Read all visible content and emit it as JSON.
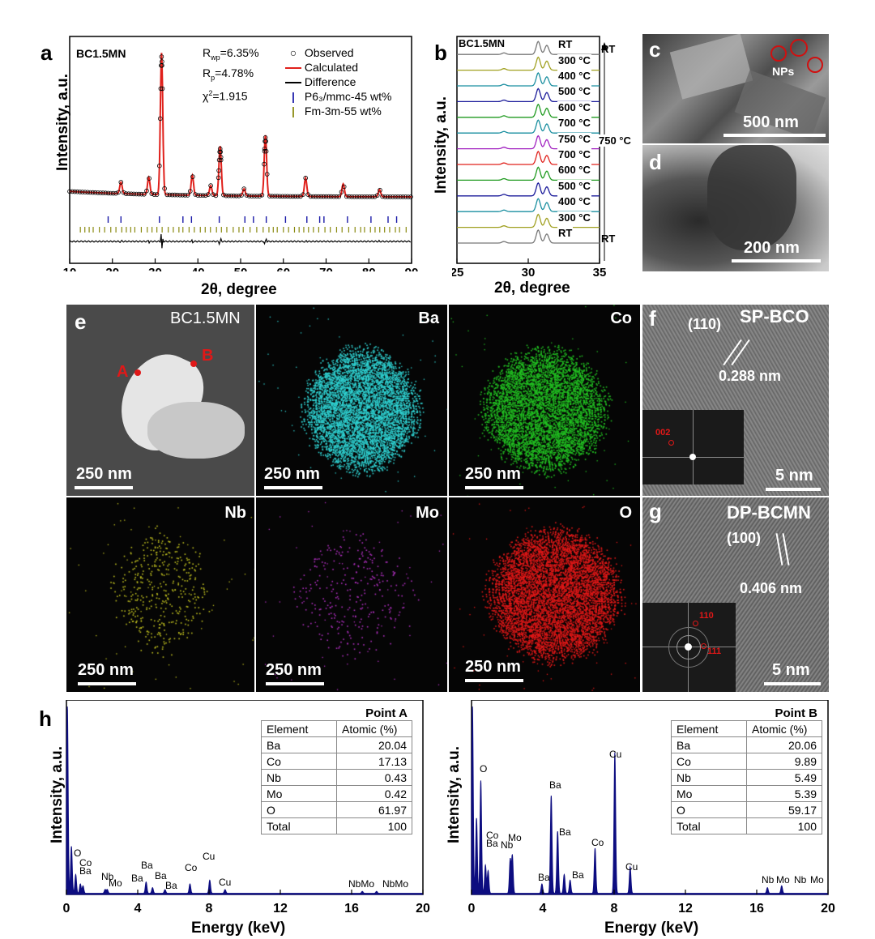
{
  "panel_a": {
    "label": "a",
    "sample": "BC1.5MN",
    "stats": {
      "rwp": "R",
      "rwp_sub": "wp",
      "rwp_val": "=6.35%",
      "rp": "R",
      "rp_sub": "p",
      "rp_val": "=4.78%",
      "chi": "χ",
      "chi_sup": "2",
      "chi_val": "=1.915"
    },
    "legend": [
      "Observed",
      "Calculated",
      "Difference",
      "P6₃/mmc-45 wt%",
      "Fm-3m-55 wt%"
    ],
    "ylabel": "Intensity, a.u.",
    "xlabel": "2θ, degree",
    "colors": {
      "calc": "#e0201b",
      "phase1": "#1a1aa8",
      "phase2": "#8a8a10"
    }
  },
  "panel_b": {
    "label": "b",
    "sample": "BC1.5MN",
    "ylabel": "Intensity, a.u.",
    "xlabel": "2θ, degree",
    "curve_labels": [
      "RT",
      "300 °C",
      "400 °C",
      "500 °C",
      "600 °C",
      "700 °C",
      "750 °C",
      "700 °C",
      "600 °C",
      "500 °C",
      "400 °C",
      "300 °C",
      "RT"
    ],
    "curve_colors": [
      "#777777",
      "#a0a020",
      "#1a8fa0",
      "#1a1a9a",
      "#1f9a1f",
      "#e0201b",
      "#a020c0",
      "#1a8fa0",
      "#1f9a1f",
      "#1a1a9a",
      "#1a8fa0",
      "#a0a020",
      "#777777"
    ],
    "side_top": "RT",
    "side_mid": "750 °C",
    "side_bot": "RT"
  },
  "panel_c": {
    "label": "c",
    "annotation": "NPs",
    "scale": "500 nm"
  },
  "panel_d": {
    "label": "d",
    "scale": "200 nm"
  },
  "panel_e": {
    "label": "e",
    "sample": "BC1.5MN",
    "point_a": "A",
    "point_b": "B",
    "maps": [
      {
        "element": "Ba",
        "color": "#2fd0d0",
        "scale": "250 nm"
      },
      {
        "element": "Co",
        "color": "#22c022",
        "scale": "250 nm"
      },
      {
        "element": "Nb",
        "color": "#c0c020",
        "scale": "250 nm"
      },
      {
        "element": "Mo",
        "color": "#b030c0",
        "scale": "250 nm"
      },
      {
        "element": "O",
        "color": "#e01818",
        "scale": "250 nm"
      }
    ],
    "scale": "250 nm"
  },
  "panel_f": {
    "label": "f",
    "title": "SP-BCO",
    "plane": "(110)",
    "spacing": "0.288 nm",
    "fft_spot": "002",
    "scale": "5 nm"
  },
  "panel_g": {
    "label": "g",
    "title": "DP-BCMN",
    "plane": "(100)",
    "spacing": "0.406 nm",
    "fft_spot1": "110",
    "fft_spot2": "111",
    "scale": "5 nm"
  },
  "panel_h": {
    "label": "h",
    "ylabel": "Intensity, a.u.",
    "xlabel": "Energy (keV)",
    "x_ticks": [
      "0",
      "4",
      "8",
      "12",
      "16",
      "20"
    ],
    "spectrum_color": "#0d0d80",
    "point_a": {
      "title": "Point A",
      "headers": [
        "Element",
        "Atomic (%)"
      ],
      "rows": [
        [
          "Ba",
          "20.04"
        ],
        [
          "Co",
          "17.13"
        ],
        [
          "Nb",
          "0.43"
        ],
        [
          "Mo",
          "0.42"
        ],
        [
          "O",
          "61.97"
        ],
        [
          "Total",
          "100"
        ]
      ],
      "peak_labels": [
        "O",
        "Co",
        "Ba",
        "Nb",
        "Mo",
        "Ba",
        "Ba",
        "Ba",
        "Ba",
        "Co",
        "Cu",
        "Cu",
        "NbMo",
        "NbMo"
      ]
    },
    "point_b": {
      "title": "Point B",
      "headers": [
        "Element",
        "Atomic (%)"
      ],
      "rows": [
        [
          "Ba",
          "20.06"
        ],
        [
          "Co",
          "9.89"
        ],
        [
          "Nb",
          "5.49"
        ],
        [
          "Mo",
          "5.39"
        ],
        [
          "O",
          "59.17"
        ],
        [
          "Total",
          "100"
        ]
      ],
      "peak_labels": [
        "O",
        "Co",
        "Ba",
        "Nb",
        "Mo",
        "Ba",
        "Ba",
        "Ba",
        "Ba",
        "Co",
        "Cu",
        "Cu",
        "Nb",
        "Mo",
        "Nb",
        "Mo"
      ]
    }
  },
  "chart_data": [
    {
      "type": "line",
      "title": "a",
      "xlabel": "2θ, degree",
      "ylabel": "Intensity, a.u.",
      "xlim": [
        10,
        90
      ],
      "x_ticks": [
        10,
        20,
        30,
        40,
        50,
        60,
        70,
        80,
        90
      ],
      "peaks": [
        {
          "x": 22.0,
          "h": 0.08
        },
        {
          "x": 28.5,
          "h": 0.12
        },
        {
          "x": 31.5,
          "h": 1.0
        },
        {
          "x": 38.7,
          "h": 0.14
        },
        {
          "x": 43.0,
          "h": 0.07
        },
        {
          "x": 45.2,
          "h": 0.35
        },
        {
          "x": 50.8,
          "h": 0.05
        },
        {
          "x": 55.8,
          "h": 0.43
        },
        {
          "x": 65.2,
          "h": 0.13
        },
        {
          "x": 74.0,
          "h": 0.09
        },
        {
          "x": 82.5,
          "h": 0.05
        }
      ],
      "series": [
        {
          "name": "Observed"
        },
        {
          "name": "Calculated"
        },
        {
          "name": "Difference"
        }
      ]
    },
    {
      "type": "line",
      "title": "b",
      "xlabel": "2θ, degree",
      "ylabel": "Intensity, a.u.",
      "xlim": [
        25,
        35
      ],
      "x_ticks": [
        25,
        30,
        35
      ],
      "peaks": [
        {
          "x": 28.3,
          "h": 0.12
        },
        {
          "x": 30.7,
          "h": 1.0
        },
        {
          "x": 31.3,
          "h": 0.7
        }
      ]
    },
    {
      "type": "bar",
      "title": "h Point A",
      "xlabel": "Energy (keV)",
      "ylabel": "Intensity, a.u.",
      "xlim": [
        0,
        20
      ],
      "peaks": [
        {
          "x": 0.05,
          "h": 1.0
        },
        {
          "x": 0.28,
          "h": 0.25
        },
        {
          "x": 0.52,
          "h": 0.1
        },
        {
          "x": 0.78,
          "h": 0.05
        },
        {
          "x": 0.93,
          "h": 0.04
        },
        {
          "x": 2.17,
          "h": 0.02
        },
        {
          "x": 2.29,
          "h": 0.02
        },
        {
          "x": 4.47,
          "h": 0.06
        },
        {
          "x": 4.83,
          "h": 0.03
        },
        {
          "x": 5.53,
          "h": 0.02
        },
        {
          "x": 6.93,
          "h": 0.05
        },
        {
          "x": 8.04,
          "h": 0.07
        },
        {
          "x": 8.9,
          "h": 0.02
        },
        {
          "x": 16.6,
          "h": 0.01
        },
        {
          "x": 17.4,
          "h": 0.01
        }
      ]
    },
    {
      "type": "bar",
      "title": "h Point B",
      "xlabel": "Energy (keV)",
      "ylabel": "Intensity, a.u.",
      "xlim": [
        0,
        20
      ],
      "peaks": [
        {
          "x": 0.05,
          "h": 1.0
        },
        {
          "x": 0.28,
          "h": 0.4
        },
        {
          "x": 0.52,
          "h": 0.6
        },
        {
          "x": 0.78,
          "h": 0.15
        },
        {
          "x": 0.93,
          "h": 0.12
        },
        {
          "x": 2.17,
          "h": 0.18
        },
        {
          "x": 2.29,
          "h": 0.2
        },
        {
          "x": 3.95,
          "h": 0.05
        },
        {
          "x": 4.47,
          "h": 0.52
        },
        {
          "x": 4.83,
          "h": 0.33
        },
        {
          "x": 5.2,
          "h": 0.1
        },
        {
          "x": 5.53,
          "h": 0.07
        },
        {
          "x": 6.93,
          "h": 0.24
        },
        {
          "x": 8.04,
          "h": 0.75
        },
        {
          "x": 8.9,
          "h": 0.14
        },
        {
          "x": 16.6,
          "h": 0.03
        },
        {
          "x": 17.4,
          "h": 0.04
        }
      ]
    }
  ]
}
